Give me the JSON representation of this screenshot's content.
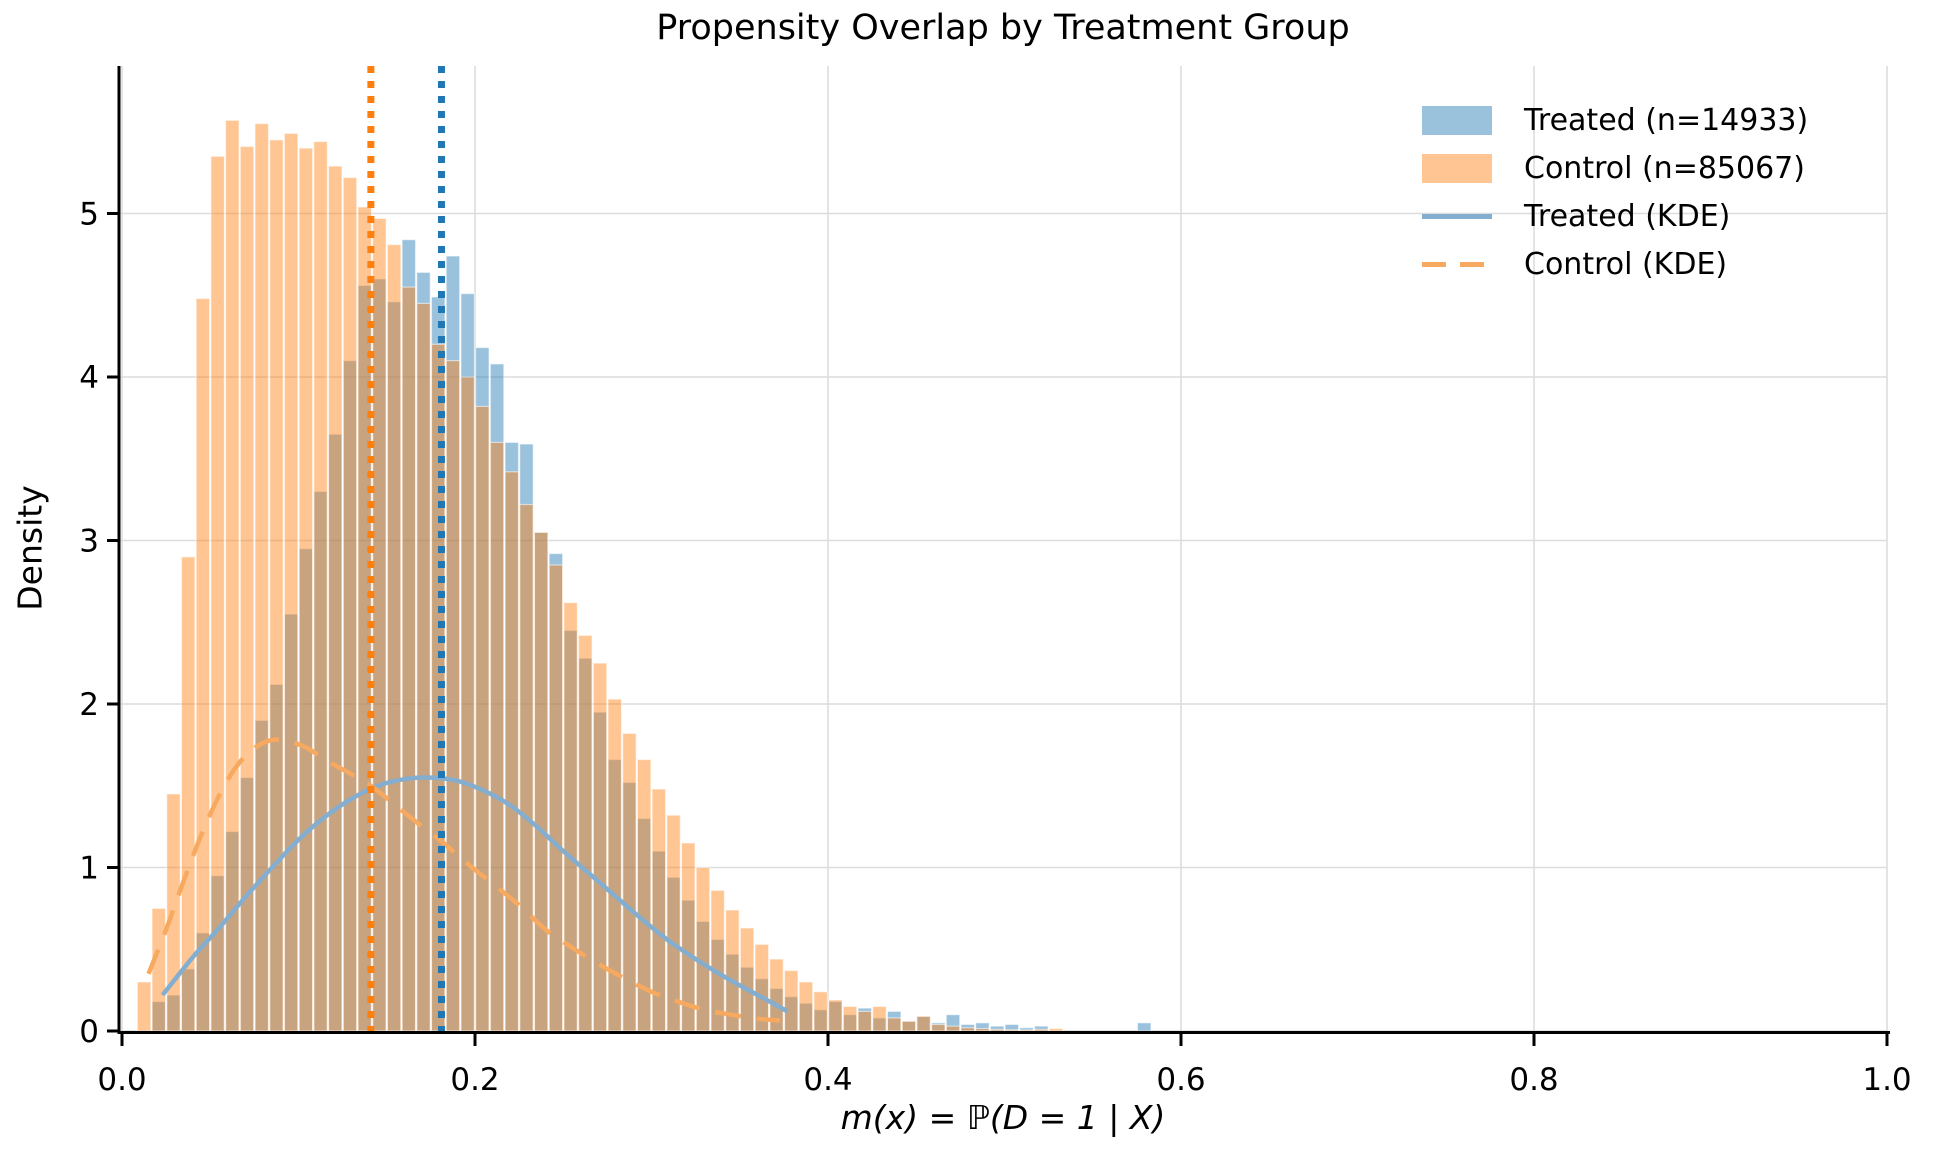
{
  "chart_data": {
    "type": "histogram+kde",
    "title": "Propensity Overlap by Treatment Group",
    "xlabel": "m(x) = ℙ(D = 1 | X)",
    "ylabel": "Density",
    "xlim": [
      0,
      1
    ],
    "ylim": [
      0,
      5.9
    ],
    "grid": true,
    "x_ticks": {
      "values": [
        0,
        0.2,
        0.4,
        0.6,
        0.8,
        1.0
      ],
      "labels": [
        "0.0",
        "0.2",
        "0.4",
        "0.6",
        "0.8",
        "1.0"
      ]
    },
    "y_ticks": {
      "values": [
        0,
        1,
        2,
        3,
        4,
        5
      ],
      "labels": [
        "0",
        "1",
        "2",
        "3",
        "4",
        "5"
      ]
    },
    "legend": {
      "position": "upper right",
      "entries": [
        {
          "label": "Treated (n=14933)",
          "type": "patch",
          "color": "rgba(31,119,180,0.45)"
        },
        {
          "label": "Control (n=85067)",
          "type": "patch",
          "color": "rgba(255,127,14,0.45)"
        },
        {
          "label": "Treated (KDE)",
          "type": "line",
          "color": "#84aecf"
        },
        {
          "label": "Control (KDE)",
          "type": "dashed-line",
          "color": "#f8a960"
        }
      ]
    },
    "series": [
      {
        "name": "Treated",
        "n": 14933,
        "kind": "histogram",
        "fill": "rgba(31,119,180,0.45)",
        "edge": "rgba(255,255,255,0.55)",
        "bin_start": 0.0166667,
        "bin_width": 0.0083333,
        "densities": [
          0.18,
          0.22,
          0.38,
          0.6,
          0.95,
          1.22,
          1.55,
          1.9,
          2.12,
          2.55,
          2.95,
          3.3,
          3.65,
          4.1,
          4.56,
          4.6,
          4.46,
          4.84,
          4.64,
          4.49,
          4.74,
          4.51,
          4.18,
          4.08,
          3.6,
          3.59,
          3.05,
          2.92,
          2.45,
          2.28,
          1.95,
          1.66,
          1.52,
          1.3,
          1.1,
          0.94,
          0.8,
          0.67,
          0.56,
          0.47,
          0.39,
          0.32,
          0.26,
          0.21,
          0.17,
          0.13,
          0.18,
          0.1,
          0.14,
          0.08,
          0.12,
          0.06,
          0.09,
          0.05,
          0.1,
          0.04,
          0.05,
          0.03,
          0.04,
          0.02,
          0.03,
          0,
          0,
          0,
          0,
          0,
          0,
          0.05
        ]
      },
      {
        "name": "Control",
        "n": 85067,
        "kind": "histogram",
        "fill": "rgba(255,127,14,0.45)",
        "edge": "rgba(255,255,255,0.55)",
        "bin_start": 0.0083333,
        "bin_width": 0.0083333,
        "densities": [
          0.3,
          0.75,
          1.45,
          2.9,
          4.48,
          5.35,
          5.57,
          5.41,
          5.55,
          5.45,
          5.49,
          5.4,
          5.44,
          5.29,
          5.22,
          5.04,
          4.97,
          4.81,
          4.55,
          4.45,
          4.2,
          4.1,
          4.0,
          3.82,
          3.6,
          3.42,
          3.22,
          3.05,
          2.85,
          2.62,
          2.42,
          2.25,
          2.03,
          1.82,
          1.66,
          1.48,
          1.32,
          1.15,
          1.0,
          0.86,
          0.74,
          0.63,
          0.53,
          0.44,
          0.37,
          0.3,
          0.24,
          0.19,
          0.15,
          0.12,
          0.15,
          0.08,
          0.06,
          0.09,
          0.04,
          0.03,
          0.02,
          0.015,
          0.01,
          0.008,
          0.006,
          0.01,
          0.015
        ]
      }
    ],
    "kde_lines": [
      {
        "name": "Treated (KDE)",
        "style": "solid",
        "color": "#84aecf",
        "width": 4.5,
        "points": [
          [
            0.023,
            0.22
          ],
          [
            0.04,
            0.45
          ],
          [
            0.055,
            0.63
          ],
          [
            0.07,
            0.82
          ],
          [
            0.085,
            1.0
          ],
          [
            0.1,
            1.17
          ],
          [
            0.115,
            1.31
          ],
          [
            0.13,
            1.42
          ],
          [
            0.145,
            1.5
          ],
          [
            0.16,
            1.54
          ],
          [
            0.175,
            1.55
          ],
          [
            0.19,
            1.53
          ],
          [
            0.205,
            1.47
          ],
          [
            0.22,
            1.38
          ],
          [
            0.235,
            1.25
          ],
          [
            0.25,
            1.1
          ],
          [
            0.265,
            0.96
          ],
          [
            0.28,
            0.82
          ],
          [
            0.295,
            0.68
          ],
          [
            0.31,
            0.55
          ],
          [
            0.325,
            0.44
          ],
          [
            0.34,
            0.34
          ],
          [
            0.355,
            0.25
          ],
          [
            0.367,
            0.18
          ],
          [
            0.377,
            0.12
          ]
        ]
      },
      {
        "name": "Control (KDE)",
        "style": "dashed",
        "color": "#f8a960",
        "width": 4.5,
        "points": [
          [
            0.015,
            0.35
          ],
          [
            0.025,
            0.62
          ],
          [
            0.035,
            0.92
          ],
          [
            0.045,
            1.2
          ],
          [
            0.055,
            1.44
          ],
          [
            0.065,
            1.62
          ],
          [
            0.075,
            1.73
          ],
          [
            0.085,
            1.78
          ],
          [
            0.095,
            1.77
          ],
          [
            0.105,
            1.73
          ],
          [
            0.115,
            1.66
          ],
          [
            0.13,
            1.57
          ],
          [
            0.141,
            1.5
          ],
          [
            0.155,
            1.38
          ],
          [
            0.17,
            1.25
          ],
          [
            0.181,
            1.16
          ],
          [
            0.195,
            1.03
          ],
          [
            0.21,
            0.9
          ],
          [
            0.225,
            0.77
          ],
          [
            0.24,
            0.62
          ],
          [
            0.255,
            0.51
          ],
          [
            0.27,
            0.41
          ],
          [
            0.285,
            0.32
          ],
          [
            0.3,
            0.24
          ],
          [
            0.315,
            0.18
          ],
          [
            0.33,
            0.13
          ],
          [
            0.345,
            0.1
          ],
          [
            0.36,
            0.075
          ],
          [
            0.373,
            0.065
          ]
        ]
      }
    ],
    "vlines": [
      {
        "series": "Control",
        "x": 0.141,
        "color": "#ff7f0e",
        "style": "dotted"
      },
      {
        "series": "Treated",
        "x": 0.181,
        "color": "#1f77b4",
        "style": "dotted"
      }
    ],
    "colors": {
      "treated_hist": "rgba(31,119,180,0.45)",
      "control_hist": "rgba(255,127,14,0.45)",
      "treated_kde": "#84aecf",
      "control_kde": "#f8a960",
      "treated_vline": "#1f77b4",
      "control_vline": "#ff7f0e",
      "gridline": "#dcdcdc",
      "spine": "#000000"
    }
  }
}
